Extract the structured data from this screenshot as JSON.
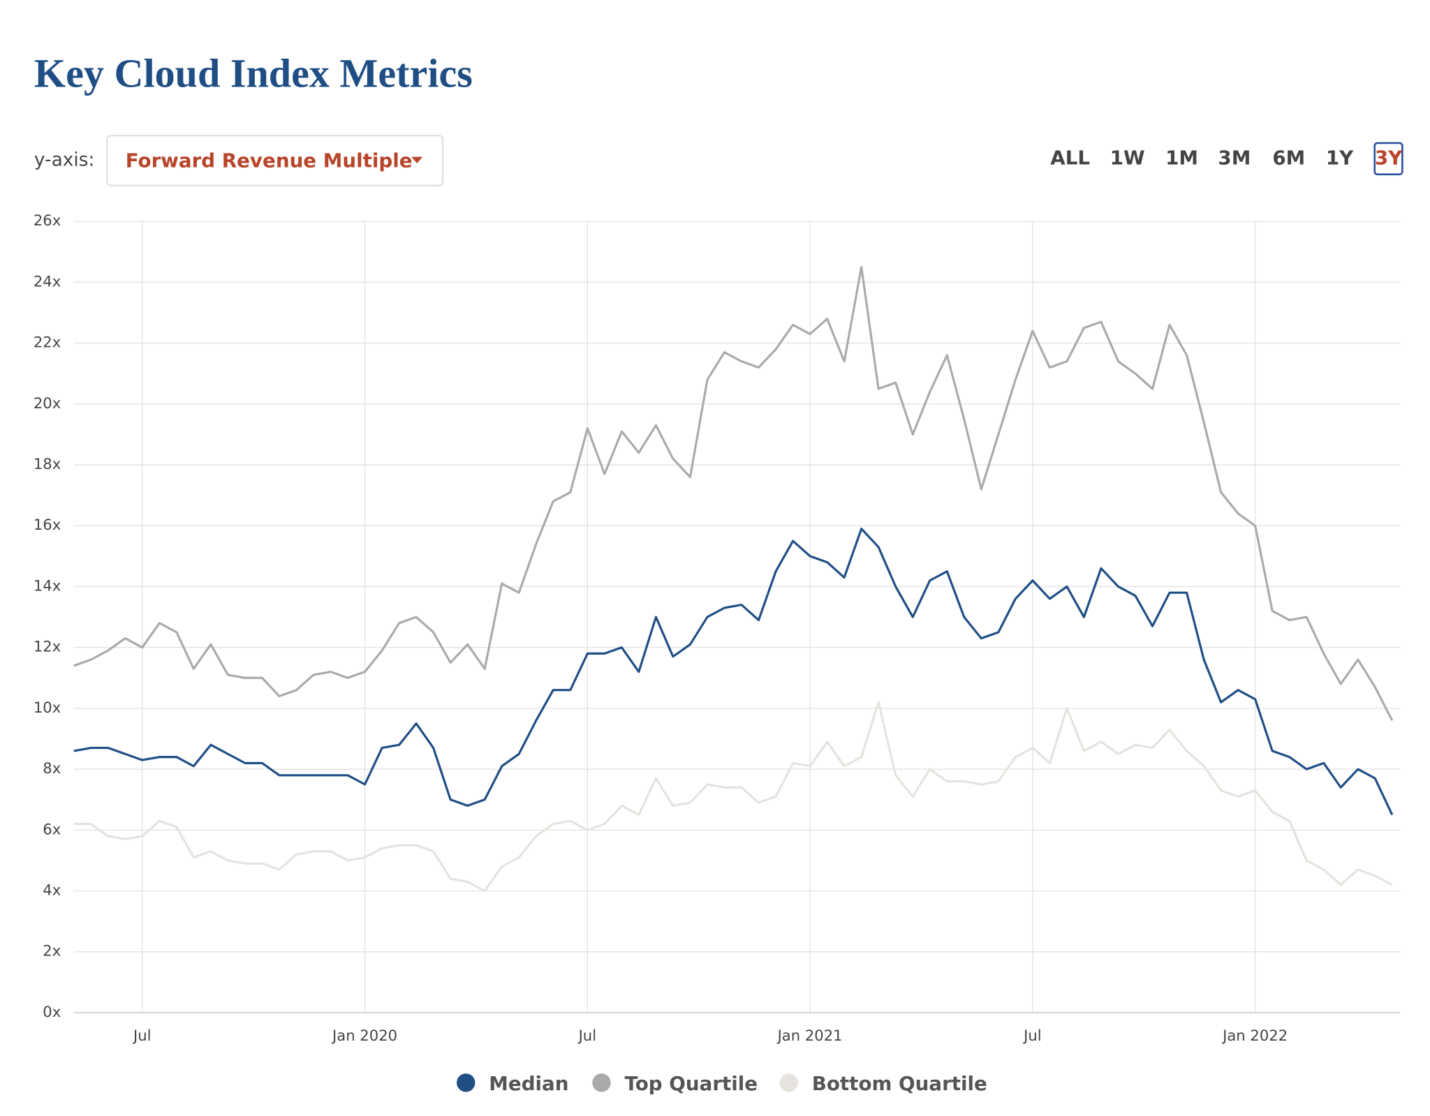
{
  "header": {
    "title": "Key Cloud Index Metrics"
  },
  "controls": {
    "y_axis_label": "y-axis:",
    "y_axis_select": "Forward Revenue Multiple",
    "ranges": [
      "ALL",
      "1W",
      "1M",
      "3M",
      "6M",
      "1Y",
      "3Y"
    ],
    "selected_range": 6
  },
  "chart_data": {
    "type": "line",
    "categories": [
      null,
      null,
      null,
      null,
      "Jul",
      null,
      null,
      null,
      null,
      null,
      null,
      null,
      null,
      null,
      null,
      null,
      null,
      "Jan 2020",
      null,
      null,
      null,
      null,
      null,
      null,
      null,
      null,
      null,
      null,
      null,
      null,
      "Jul",
      null,
      null,
      null,
      null,
      null,
      null,
      null,
      null,
      null,
      null,
      null,
      null,
      "Jan 2021",
      null,
      null,
      null,
      null,
      null,
      null,
      null,
      null,
      null,
      null,
      null,
      null,
      "Jul",
      null,
      null,
      null,
      null,
      null,
      null,
      null,
      null,
      null,
      null,
      null,
      null,
      "Jan 2022",
      null,
      null,
      null,
      null,
      null,
      null,
      null,
      null
    ],
    "series": [
      {
        "name": "Median",
        "color": "#1f4e85",
        "values": [
          8.6,
          8.7,
          8.7,
          8.5,
          8.3,
          8.4,
          8.4,
          8.1,
          8.8,
          8.5,
          8.2,
          8.2,
          7.8,
          7.8,
          7.8,
          7.8,
          7.8,
          7.5,
          8.7,
          8.8,
          9.5,
          8.7,
          7.0,
          6.8,
          7.0,
          8.1,
          8.5,
          9.6,
          10.6,
          10.6,
          11.8,
          11.8,
          12.0,
          11.2,
          13.0,
          11.7,
          12.1,
          13.0,
          13.3,
          13.4,
          12.9,
          14.5,
          15.5,
          15.0,
          14.8,
          14.3,
          15.9,
          15.3,
          14.0,
          13.0,
          14.2,
          14.5,
          13.0,
          12.3,
          12.5,
          13.6,
          14.2,
          13.6,
          14.0,
          13.0,
          14.6,
          14.0,
          13.7,
          12.7,
          13.8,
          13.8,
          11.6,
          10.2,
          10.6,
          10.3,
          8.6,
          8.4,
          8.0,
          8.2,
          7.4,
          8.0,
          7.7,
          6.5
        ]
      },
      {
        "name": "Top Quartile",
        "color": "#aaaaaa",
        "values": [
          11.4,
          11.6,
          11.9,
          12.3,
          12.0,
          12.8,
          12.5,
          11.3,
          12.1,
          11.1,
          11.0,
          11.0,
          10.4,
          10.6,
          11.1,
          11.2,
          11.0,
          11.2,
          11.9,
          12.8,
          13.0,
          12.5,
          11.5,
          12.1,
          11.3,
          14.1,
          13.8,
          15.4,
          16.8,
          17.1,
          19.2,
          17.7,
          19.1,
          18.4,
          19.3,
          18.2,
          17.6,
          20.8,
          21.7,
          21.4,
          21.2,
          21.8,
          22.6,
          22.3,
          22.8,
          21.4,
          24.5,
          20.5,
          20.7,
          19.0,
          20.4,
          21.6,
          19.5,
          17.2,
          19.0,
          20.8,
          22.4,
          21.2,
          21.4,
          22.5,
          22.7,
          21.4,
          21.0,
          20.5,
          22.6,
          21.6,
          19.4,
          17.1,
          16.4,
          16.0,
          13.2,
          12.9,
          13.0,
          11.8,
          10.8,
          11.6,
          10.7,
          9.6
        ]
      },
      {
        "name": "Bottom Quartile",
        "color": "#e6e3de",
        "values": [
          6.2,
          6.2,
          5.8,
          5.7,
          5.8,
          6.3,
          6.1,
          5.1,
          5.3,
          5.0,
          4.9,
          4.9,
          4.7,
          5.2,
          5.3,
          5.3,
          5.0,
          5.1,
          5.4,
          5.5,
          5.5,
          5.3,
          4.4,
          4.3,
          4.0,
          4.8,
          5.1,
          5.8,
          6.2,
          6.3,
          6.0,
          6.2,
          6.8,
          6.5,
          7.7,
          6.8,
          6.9,
          7.5,
          7.4,
          7.4,
          6.9,
          7.1,
          8.2,
          8.1,
          8.9,
          8.1,
          8.4,
          10.2,
          7.8,
          7.1,
          8.0,
          7.6,
          7.6,
          7.5,
          7.6,
          8.4,
          8.7,
          8.2,
          10.0,
          8.6,
          8.9,
          8.5,
          8.8,
          8.7,
          9.3,
          8.6,
          8.1,
          7.3,
          7.1,
          7.3,
          6.6,
          6.3,
          5.0,
          4.7,
          4.2,
          4.7,
          4.5,
          4.2
        ]
      }
    ],
    "ylim": [
      0,
      26
    ],
    "yticks": [
      {
        "value": 0,
        "label": "0x"
      },
      {
        "value": 2,
        "label": "2x"
      },
      {
        "value": 4,
        "label": "4x"
      },
      {
        "value": 6,
        "label": "6x"
      },
      {
        "value": 8,
        "label": "8x"
      },
      {
        "value": 10,
        "label": "10x"
      },
      {
        "value": 12,
        "label": "12x"
      },
      {
        "value": 14,
        "label": "14x"
      },
      {
        "value": 16,
        "label": "16x"
      },
      {
        "value": 18,
        "label": "18x"
      },
      {
        "value": 20,
        "label": "20x"
      },
      {
        "value": 22,
        "label": "22x"
      },
      {
        "value": 24,
        "label": "24x"
      },
      {
        "value": 26,
        "label": "26x"
      }
    ],
    "grid": true
  }
}
